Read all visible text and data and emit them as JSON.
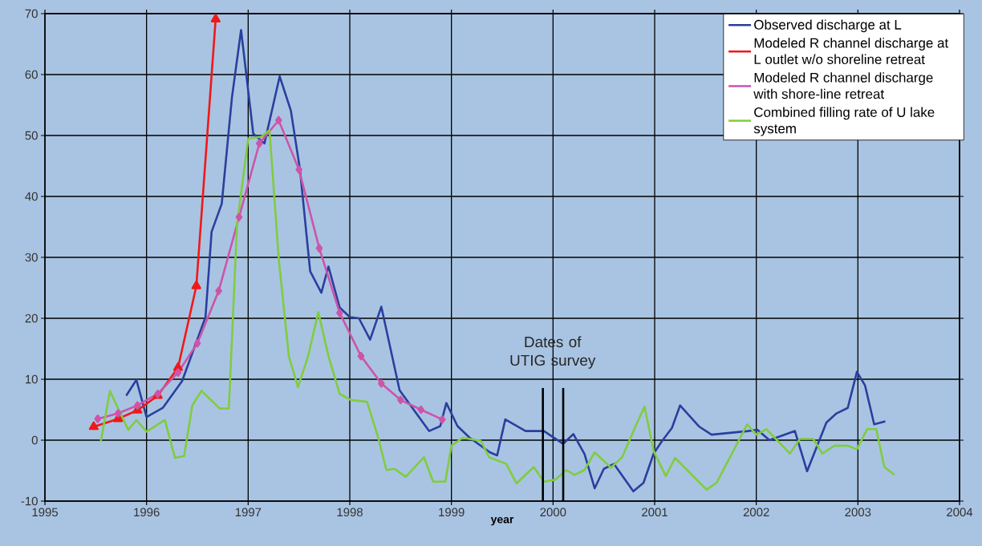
{
  "chart_data": {
    "type": "line",
    "xlabel": "year",
    "xlim": [
      1995,
      2004
    ],
    "ylim": [
      -10,
      70
    ],
    "xticks": [
      1995,
      1996,
      1997,
      1998,
      1999,
      2000,
      2001,
      2002,
      2003,
      2004
    ],
    "yticks": [
      -10,
      0,
      10,
      20,
      30,
      40,
      50,
      60,
      70
    ],
    "grid": true,
    "legend": "top right",
    "series": [
      {
        "name": "Observed discharge at L",
        "color": "#2a3f9e",
        "x": [
          1995.8,
          1995.9,
          1996.0,
          1996.16,
          1996.35,
          1996.51,
          1996.58,
          1996.64,
          1996.74,
          1996.84,
          1996.93,
          1997.05,
          1997.16,
          1997.31,
          1997.42,
          1997.51,
          1997.61,
          1997.72,
          1997.79,
          1997.9,
          1998.0,
          1998.09,
          1998.2,
          1998.31,
          1998.49,
          1998.78,
          1998.89,
          1998.95,
          1999.06,
          1999.18,
          1999.38,
          1999.45,
          1999.53,
          1999.73,
          1999.91,
          2000.1,
          2000.2,
          2000.31,
          2000.41,
          2000.5,
          2000.6,
          2000.79,
          2000.89,
          2000.99,
          2001.07,
          2001.17,
          2001.25,
          2001.44,
          2001.56,
          2001.74,
          2001.92,
          2002.01,
          2002.13,
          2002.38,
          2002.5,
          2002.6,
          2002.69,
          2002.79,
          2002.9,
          2002.99,
          2003.07,
          2003.16,
          2003.27
        ],
        "values": [
          7.3,
          9.9,
          3.8,
          5.3,
          9.7,
          17.0,
          20.2,
          34.2,
          38.8,
          56.2,
          67.3,
          50.3,
          48.7,
          59.7,
          54.1,
          44.4,
          27.7,
          24.2,
          28.5,
          21.8,
          20.2,
          20.0,
          16.5,
          21.9,
          8.2,
          1.5,
          2.3,
          6.1,
          2.3,
          0.4,
          -2.0,
          -2.5,
          3.4,
          1.5,
          1.5,
          -0.6,
          1.0,
          -2.3,
          -7.9,
          -4.7,
          -3.9,
          -8.4,
          -7.0,
          -2.2,
          -0.2,
          2.0,
          5.7,
          2.2,
          0.9,
          1.2,
          1.5,
          1.7,
          0.0,
          1.5,
          -5.1,
          -0.9,
          2.9,
          4.4,
          5.3,
          11.2,
          9.0,
          2.6,
          3.1
        ]
      },
      {
        "name": "Modeled R channel discharge at L outlet w/o shoreline retreat",
        "color": "#f01818",
        "marker": "triangle",
        "x": [
          1995.48,
          1995.72,
          1995.91,
          1996.11,
          1996.31,
          1996.49,
          1996.68
        ],
        "values": [
          2.2,
          3.5,
          4.9,
          7.3,
          11.9,
          25.3,
          69.1
        ]
      },
      {
        "name": "Modeled R channel discharge with shore-line retreat",
        "color": "#cc55aa",
        "marker": "diamond",
        "x": [
          1995.52,
          1995.72,
          1995.91,
          1996.11,
          1996.31,
          1996.5,
          1996.71,
          1996.91,
          1997.11,
          1997.3,
          1997.5,
          1997.7,
          1997.9,
          1998.11,
          1998.31,
          1998.5,
          1998.7,
          1998.91
        ],
        "values": [
          3.5,
          4.4,
          5.7,
          7.6,
          11.1,
          15.9,
          24.5,
          36.6,
          48.7,
          52.5,
          44.4,
          31.5,
          20.9,
          13.8,
          9.3,
          6.6,
          5.0,
          3.4
        ]
      },
      {
        "name": "Combined filling rate of U lake system",
        "color": "#80cc40",
        "x": [
          1995.55,
          1995.64,
          1995.72,
          1995.82,
          1995.9,
          1996.0,
          1996.18,
          1996.28,
          1996.37,
          1996.45,
          1996.54,
          1996.72,
          1996.81,
          1996.89,
          1997.0,
          1997.13,
          1997.21,
          1997.3,
          1997.4,
          1997.49,
          1997.59,
          1997.69,
          1997.79,
          1997.9,
          1998.01,
          1998.17,
          1998.28,
          1998.36,
          1998.44,
          1998.55,
          1998.73,
          1998.82,
          1998.94,
          1999.0,
          1999.11,
          1999.29,
          1999.37,
          1999.54,
          1999.64,
          1999.81,
          1999.91,
          2000.02,
          2000.13,
          2000.21,
          2000.31,
          2000.41,
          2000.57,
          2000.68,
          2000.82,
          2000.9,
          2000.99,
          2001.11,
          2001.2,
          2001.51,
          2001.61,
          2001.91,
          2002.0,
          2002.1,
          2002.33,
          2002.43,
          2002.56,
          2002.65,
          2002.77,
          2002.9,
          2002.99,
          2003.09,
          2003.18,
          2003.26,
          2003.36
        ],
        "values": [
          -0.2,
          8.1,
          5.2,
          1.7,
          3.3,
          1.4,
          3.3,
          -2.9,
          -2.6,
          5.7,
          8.1,
          5.2,
          5.2,
          35.3,
          49.5,
          49.8,
          50.9,
          29.9,
          13.8,
          8.7,
          13.8,
          21.0,
          13.8,
          7.6,
          6.6,
          6.3,
          0.4,
          -4.9,
          -4.7,
          -6.0,
          -2.8,
          -6.8,
          -6.8,
          -0.9,
          0.4,
          -0.1,
          -2.8,
          -3.9,
          -7.1,
          -4.4,
          -6.8,
          -6.5,
          -4.9,
          -5.7,
          -4.9,
          -2.0,
          -4.5,
          -2.8,
          2.6,
          5.5,
          -1.8,
          -5.9,
          -2.9,
          -8.1,
          -7.0,
          2.6,
          0.9,
          1.8,
          -2.2,
          0.2,
          0.2,
          -2.2,
          -0.9,
          -0.9,
          -1.5,
          1.8,
          1.8,
          -4.4,
          -5.7
        ]
      }
    ],
    "ref_lines": [
      {
        "axis": "x",
        "value": 1999.9,
        "color": "#000000"
      },
      {
        "axis": "x",
        "value": 2000.1,
        "color": "#000000"
      }
    ],
    "annotations": [
      "Dates of UTIG survey"
    ]
  }
}
